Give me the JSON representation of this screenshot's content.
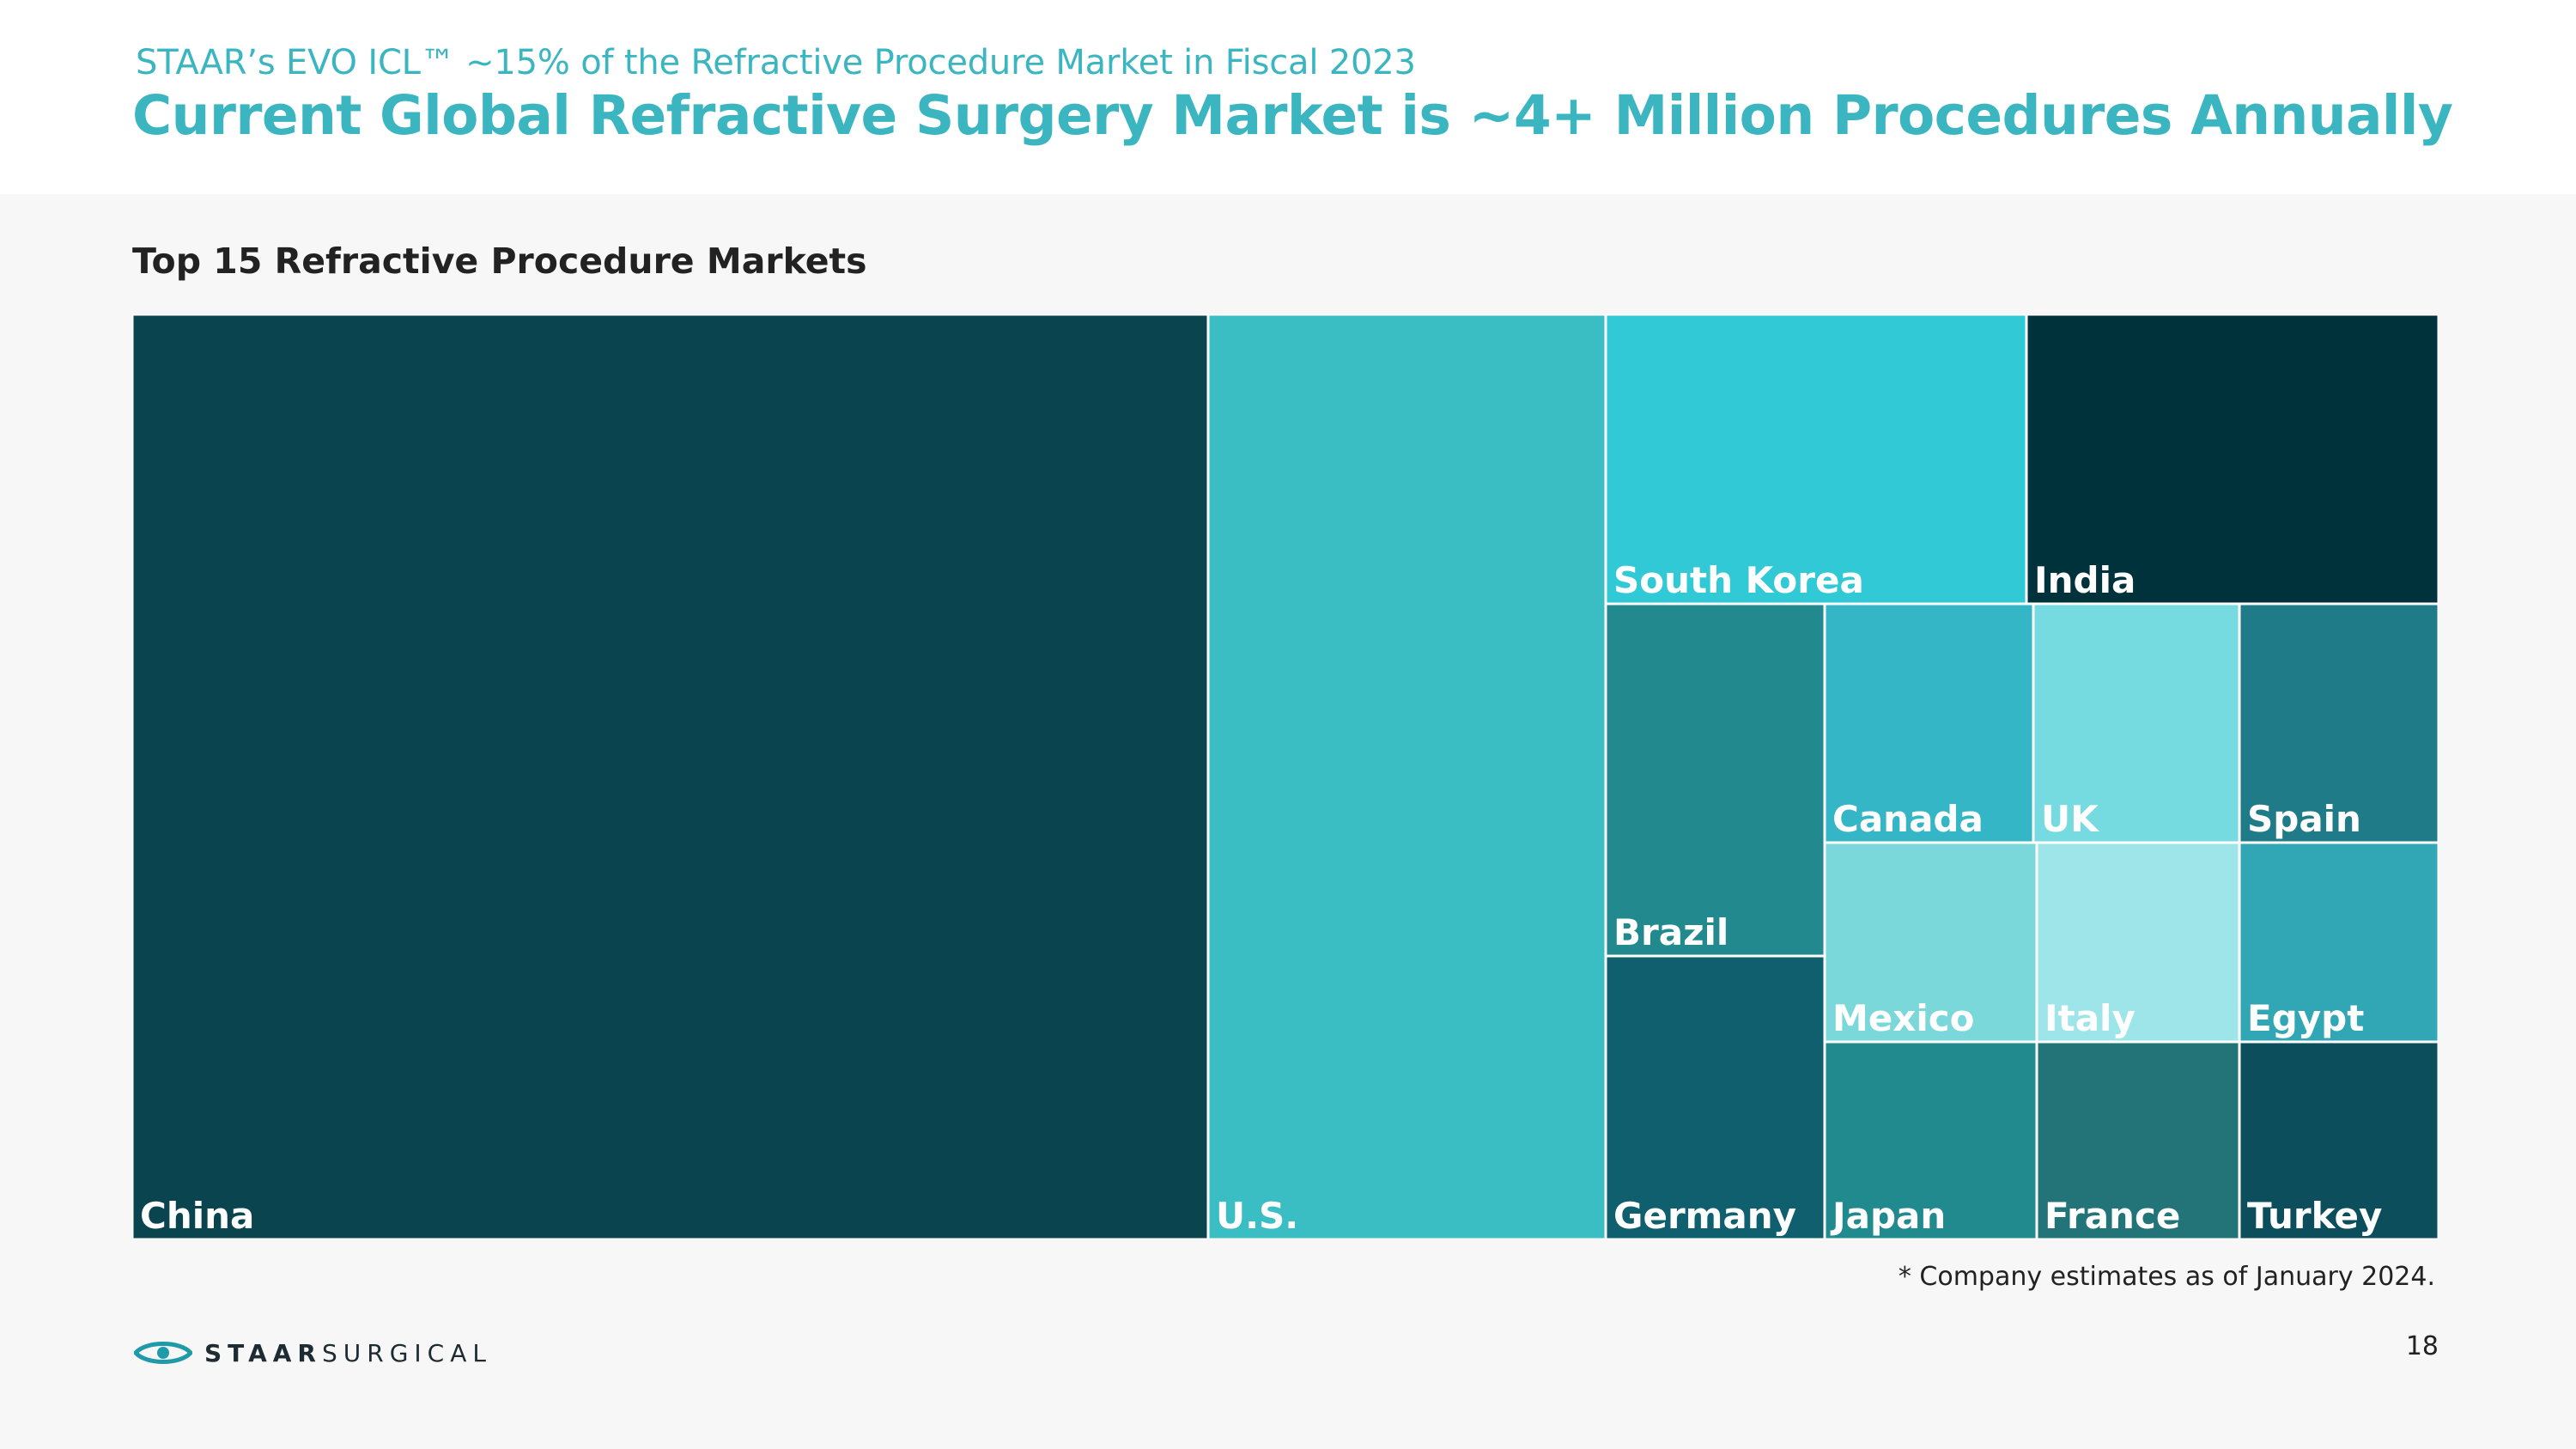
{
  "header": {
    "subtitle": "STAAR’s EVO ICL™ ~15% of the Refractive Procedure Market in Fiscal 2023",
    "title": "Current Global Refractive Surgery Market is ~4+ Million Procedures Annually"
  },
  "chart_title": "Top 15 Refractive Procedure Markets",
  "chart_data": {
    "type": "treemap",
    "title": "Top 15 Refractive Procedure Markets",
    "units": "relative share of refractive procedures (area estimated from tile size, % of top-15 total)",
    "items": [
      {
        "label": "China",
        "value": 46.7,
        "color": "#0a444f"
      },
      {
        "label": "U.S.",
        "value": 17.3,
        "color": "#3bbec3"
      },
      {
        "label": "South Korea",
        "value": 5.6,
        "color": "#32c9d6"
      },
      {
        "label": "India",
        "value": 5.5,
        "color": "#00323c"
      },
      {
        "label": "Brazil",
        "value": 3.6,
        "color": "#228a8f"
      },
      {
        "label": "Germany",
        "value": 2.9,
        "color": "#0f5f6e"
      },
      {
        "label": "Canada",
        "value": 2.3,
        "color": "#35b6c6"
      },
      {
        "label": "UK",
        "value": 2.3,
        "color": "#76dbe0"
      },
      {
        "label": "Spain",
        "value": 2.2,
        "color": "#1e7b87"
      },
      {
        "label": "Mexico",
        "value": 1.9,
        "color": "#7ad7da"
      },
      {
        "label": "Italy",
        "value": 1.9,
        "color": "#9ee5e9"
      },
      {
        "label": "Egypt",
        "value": 1.8,
        "color": "#31a7b5"
      },
      {
        "label": "Japan",
        "value": 2.0,
        "color": "#218a8f"
      },
      {
        "label": "France",
        "value": 2.0,
        "color": "#237478"
      },
      {
        "label": "Turkey",
        "value": 1.8,
        "color": "#0c4e5c"
      }
    ]
  },
  "footnote": "* Company estimates as of January 2024.",
  "page_number": "18",
  "logo": {
    "bold_text": "STAAR",
    "light_text": "SURGICAL",
    "color": "#1f9aa8"
  }
}
